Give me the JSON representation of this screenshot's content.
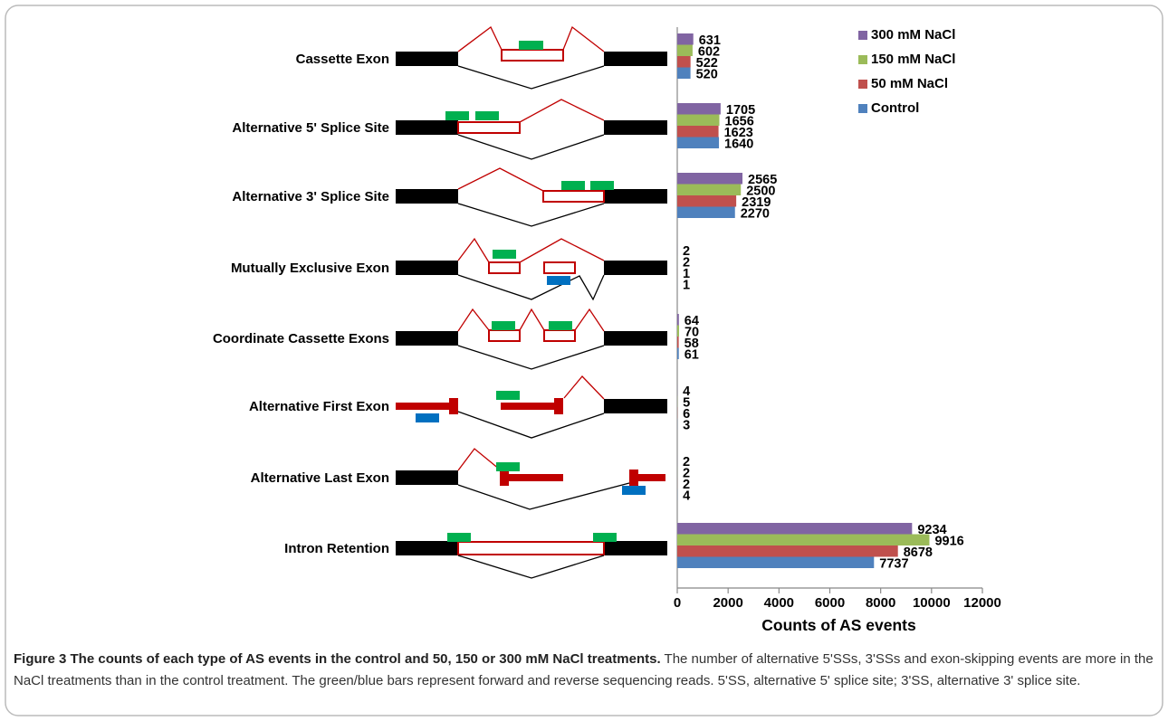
{
  "figure": {
    "caption_title": "Figure 3 The counts of each type of AS events in the control and 50, 150 or 300 mM NaCl treatments.",
    "caption_text": "The number of alternative 5'SSs, 3'SSs and exon-skipping events are more in the NaCl treatments than in the control treatment. The green/blue bars represent forward and reverse sequencing reads. 5'SS, alternative 5' splice site; 3'SS, alternative 3' splice site."
  },
  "chart_data": {
    "type": "bar",
    "orientation": "horizontal",
    "categories": [
      "Cassette Exon",
      "Alternative 5' Splice Site",
      "Alternative 3' Splice Site",
      "Mutually Exclusive Exon",
      "Coordinate Cassette Exons",
      "Alternative First Exon",
      "Alternative Last Exon",
      "Intron Retention"
    ],
    "series": [
      {
        "name": "300 mM NaCl",
        "color": "#8064a2",
        "values": [
          631,
          1705,
          2565,
          2,
          64,
          4,
          2,
          9234
        ]
      },
      {
        "name": "150 mM NaCl",
        "color": "#9bbb59",
        "values": [
          602,
          1656,
          2500,
          2,
          70,
          5,
          2,
          9916
        ]
      },
      {
        "name": "50 mM NaCl",
        "color": "#c0504d",
        "values": [
          522,
          1623,
          2319,
          1,
          58,
          6,
          2,
          8678
        ]
      },
      {
        "name": "Control",
        "color": "#4f81bd",
        "values": [
          520,
          1640,
          2270,
          1,
          61,
          3,
          4,
          7737
        ]
      }
    ],
    "xlabel": "Counts of AS events",
    "ylabel": "",
    "xlim": [
      0,
      12000
    ],
    "xticks": [
      0,
      2000,
      4000,
      6000,
      8000,
      10000,
      12000
    ],
    "legend": "top-right",
    "grid": false
  },
  "colors": {
    "exon": "#000000",
    "intron_line": "#c00000",
    "forward_read": "#00b050",
    "reverse_read": "#0070c0"
  }
}
